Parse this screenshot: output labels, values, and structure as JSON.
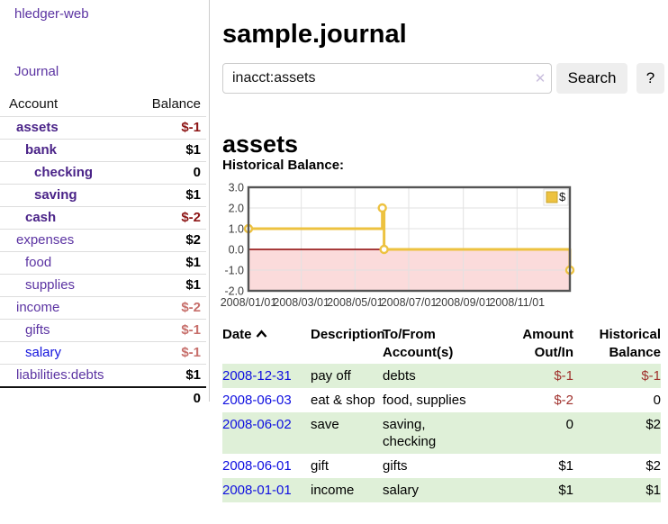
{
  "app": {
    "title": "hledger-web"
  },
  "sidebar": {
    "journal_link": "Journal",
    "accounts_table": {
      "account_header": "Account",
      "balance_header": "Balance",
      "rows": [
        {
          "name": "assets",
          "level": 1,
          "style": "bold",
          "balance": "$-1",
          "balance_style": "neg-strong"
        },
        {
          "name": "bank",
          "level": 2,
          "style": "bold",
          "balance": "$1",
          "balance_style": "pos"
        },
        {
          "name": "checking",
          "level": 3,
          "style": "bold",
          "balance": "0",
          "balance_style": "pos"
        },
        {
          "name": "saving",
          "level": 3,
          "style": "bold",
          "balance": "$1",
          "balance_style": "pos"
        },
        {
          "name": "cash",
          "level": 2,
          "style": "bold",
          "balance": "$-2",
          "balance_style": "neg-strong"
        },
        {
          "name": "expenses",
          "level": 1,
          "style": "plain",
          "balance": "$2",
          "balance_style": "pos"
        },
        {
          "name": "food",
          "level": 2,
          "style": "plain",
          "balance": "$1",
          "balance_style": "pos"
        },
        {
          "name": "supplies",
          "level": 2,
          "style": "plain",
          "balance": "$1",
          "balance_style": "pos"
        },
        {
          "name": "income",
          "level": 1,
          "style": "plain",
          "balance": "$-2",
          "balance_style": "neg-soft"
        },
        {
          "name": "gifts",
          "level": 2,
          "style": "plain",
          "balance": "$-1",
          "balance_style": "neg-soft"
        },
        {
          "name": "salary",
          "level": 2,
          "style": "blue",
          "balance": "$-1",
          "balance_style": "neg-soft"
        },
        {
          "name": "liabilities:debts",
          "level": 1,
          "style": "plain",
          "balance": "$1",
          "balance_style": "pos"
        }
      ],
      "total": "0"
    }
  },
  "header": {
    "title": "sample.journal"
  },
  "search": {
    "value": "inacct:assets",
    "clear_icon_label": "x",
    "search_button": "Search",
    "help_button": "?"
  },
  "account_page": {
    "title": "assets",
    "chart_heading": "Historical Balance:"
  },
  "chart_data": {
    "type": "line",
    "title": "Historical Balance",
    "series": [
      {
        "name": "$",
        "color": "#edc240",
        "steps": true,
        "points": [
          [
            "2008-01-01",
            1
          ],
          [
            "2008-06-01",
            2
          ],
          [
            "2008-06-03",
            0
          ],
          [
            "2008-12-31",
            -1
          ]
        ]
      }
    ],
    "x_range": [
      "2008-01-01",
      "2008-12-31"
    ],
    "x_ticks": [
      "2008/01/01",
      "2008/03/01",
      "2008/05/01",
      "2008/07/01",
      "2008/09/01",
      "2008/11/01"
    ],
    "y_ticks": [
      "3.0",
      "2.0",
      "1.0",
      "0.0",
      "-1.0",
      "-2.0"
    ],
    "ylim": [
      -2,
      3
    ],
    "grid": true,
    "legend_position": "top-right",
    "legend_label": "$",
    "negative_region_fill": "#fbdbdb",
    "zero_line_color": "#8b0000",
    "grid_color": "#e2e2e2",
    "border_color": "#545454",
    "tick_label_color": "#3c3c3c"
  },
  "register": {
    "headers": {
      "date": "Date",
      "description": "Description",
      "accounts": "To/From\nAccount(s)",
      "amount": "Amount\nOut/In",
      "balance": "Historical\nBalance"
    },
    "rows": [
      {
        "date": "2008-12-31",
        "description": "pay off",
        "accounts": "debts",
        "amount": "$-1",
        "amount_neg": true,
        "balance": "$-1",
        "balance_neg": true
      },
      {
        "date": "2008-06-03",
        "description": "eat & shop",
        "accounts": "food, supplies",
        "amount": "$-2",
        "amount_neg": true,
        "balance": "0",
        "balance_neg": false
      },
      {
        "date": "2008-06-02",
        "description": "save",
        "accounts": "saving,\nchecking",
        "amount": "0",
        "amount_neg": false,
        "balance": "$2",
        "balance_neg": false
      },
      {
        "date": "2008-06-01",
        "description": "gift",
        "accounts": "gifts",
        "amount": "$1",
        "amount_neg": false,
        "balance": "$2",
        "balance_neg": false
      },
      {
        "date": "2008-01-01",
        "description": "income",
        "accounts": "salary",
        "amount": "$1",
        "amount_neg": false,
        "balance": "$1",
        "balance_neg": false
      }
    ]
  }
}
